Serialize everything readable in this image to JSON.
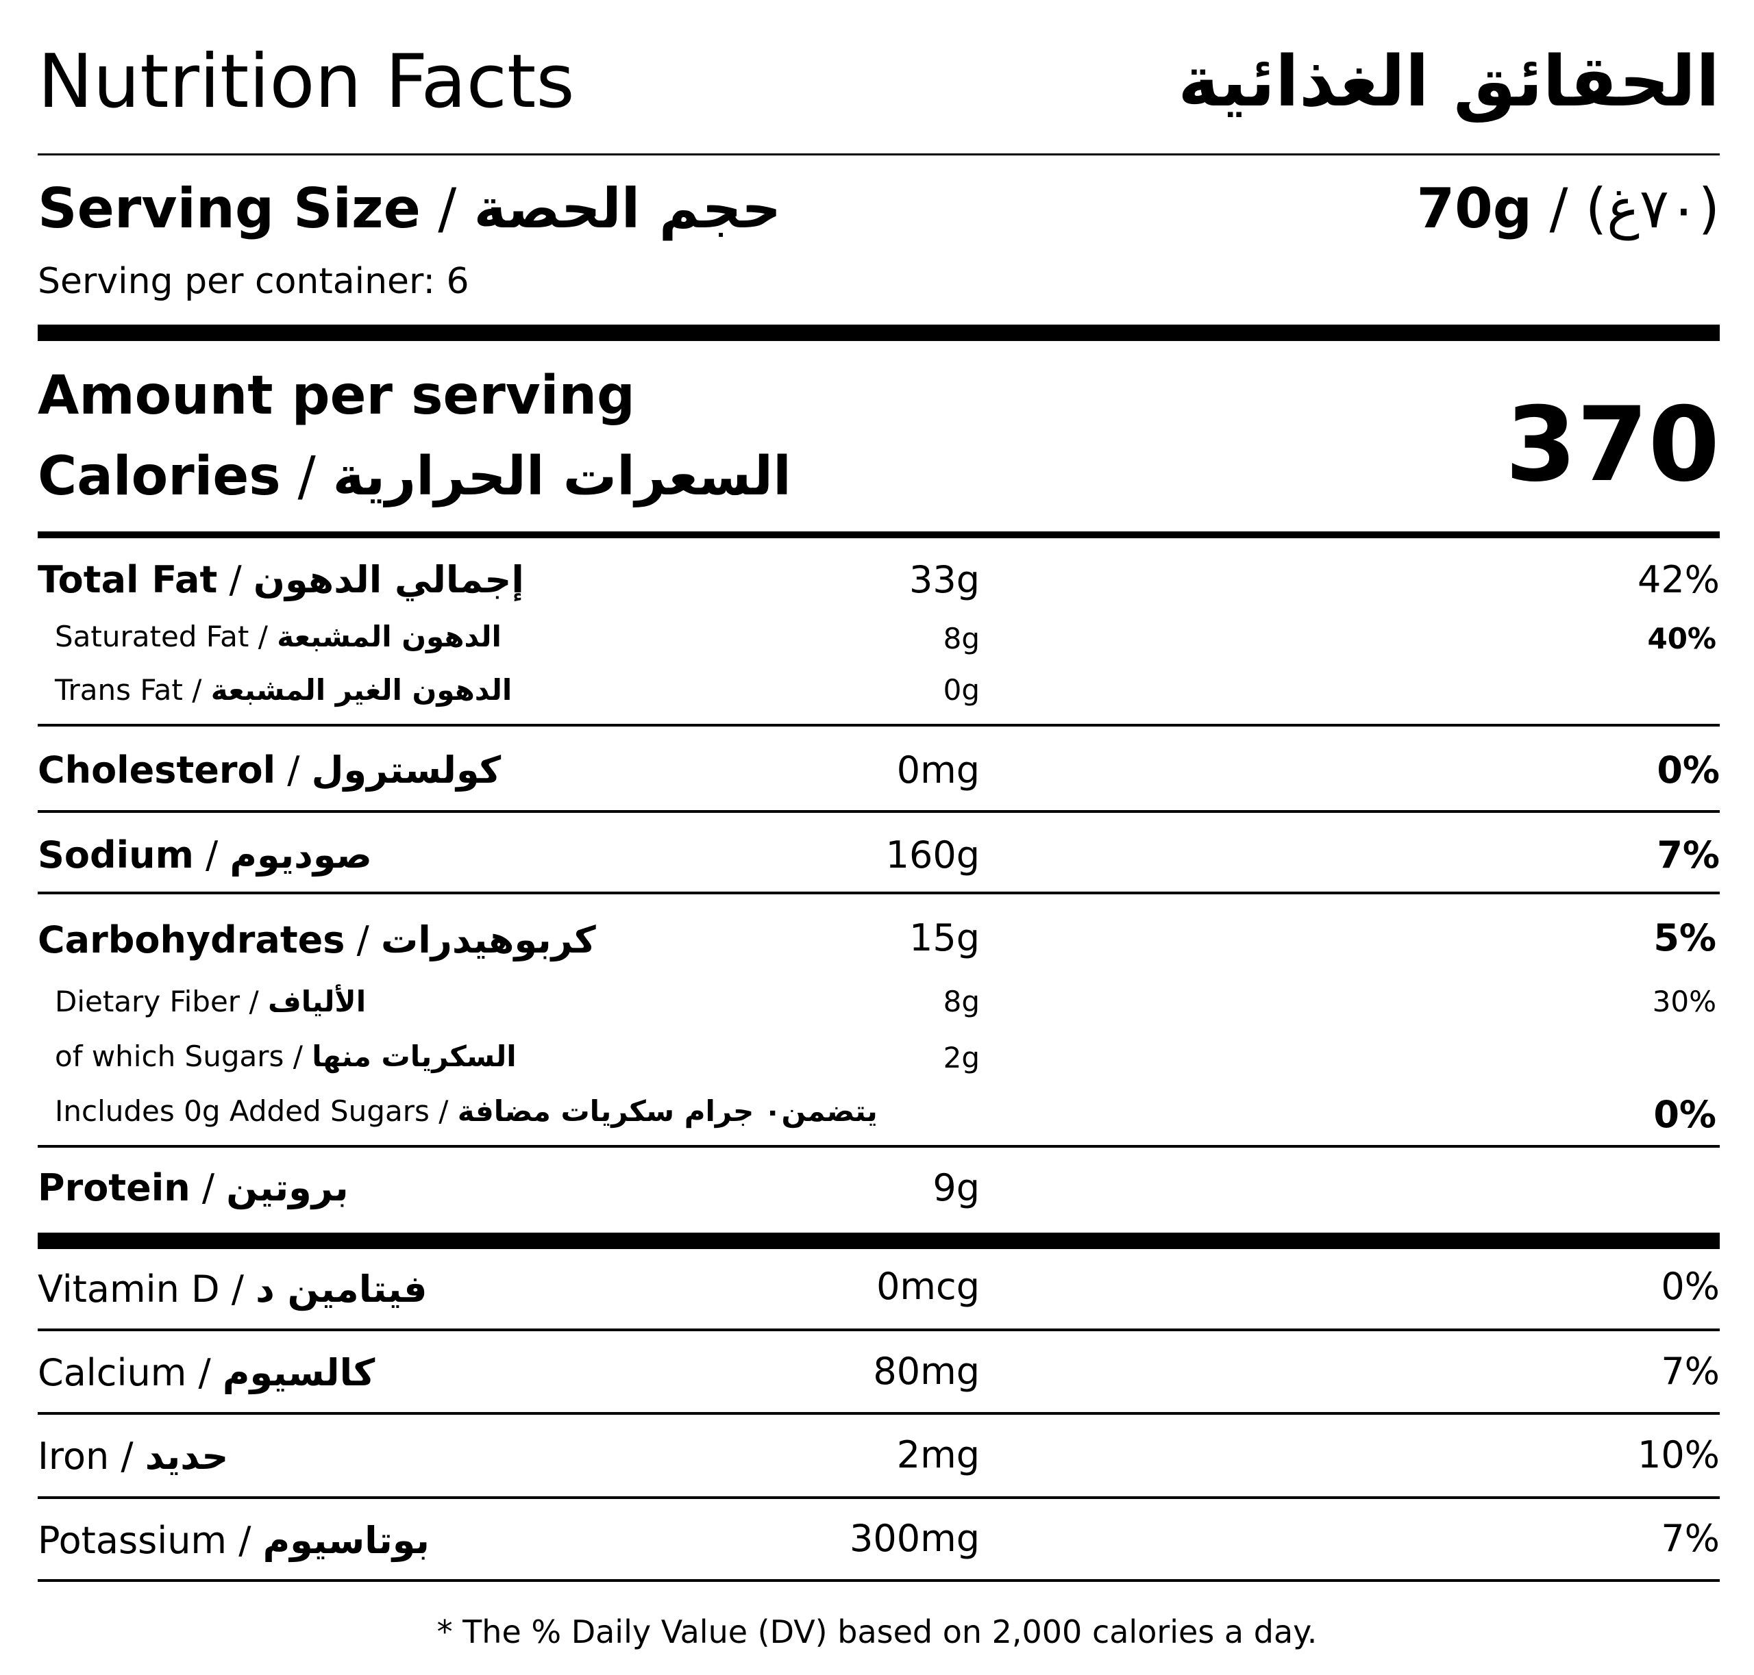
{
  "header": {
    "title_en": "Nutrition Facts",
    "title_ar": "الحقائق الغذائية"
  },
  "serving": {
    "size_label_en": "Serving Size",
    "size_label_ar": "حجم الحصة",
    "size_value_en": "70g",
    "size_value_ar": "(٧٠غ)",
    "per_container": "Serving per container: 6"
  },
  "calories": {
    "amount_label": "Amount per serving",
    "label_en": "Calories",
    "label_ar": "السعرات الحرارية",
    "value": "370"
  },
  "nutrients": [
    {
      "en": "Total Fat",
      "ar": "إجمالي الدهون",
      "amount": "33g",
      "dv": "42%"
    },
    {
      "en": "Saturated Fat",
      "ar": "الدهون المشبعة",
      "amount": "8g",
      "dv": "40%"
    },
    {
      "en": "Trans Fat",
      "ar": "الدهون الغير المشبعة",
      "amount": "0g",
      "dv": ""
    },
    {
      "en": "Cholesterol",
      "ar": "كولسترول",
      "amount": "0mg",
      "dv": "0%"
    },
    {
      "en": "Sodium",
      "ar": "صوديوم",
      "amount": "160g",
      "dv": "7%"
    },
    {
      "en": "Carbohydrates",
      "ar": "كربوهيدرات",
      "amount": "15g",
      "dv": "5%"
    },
    {
      "en": "Dietary Fiber",
      "ar": "الألياف",
      "amount": "8g",
      "dv": "30%"
    },
    {
      "en": "of which Sugars",
      "ar": "السكريات منها",
      "amount": "2g",
      "dv": ""
    },
    {
      "en": "Includes 0g Added Sugars",
      "ar": "يتضمن٠ جرام سكريات مضافة",
      "amount": "",
      "dv": "0%"
    },
    {
      "en": "Protein",
      "ar": "بروتين",
      "amount": "9g",
      "dv": ""
    }
  ],
  "vitamins": [
    {
      "en": "Vitamin D",
      "ar": "فيتامين د",
      "amount": "0mcg",
      "dv": "0%"
    },
    {
      "en": "Calcium",
      "ar": "كالسيوم",
      "amount": "80mg",
      "dv": "7%"
    },
    {
      "en": "Iron",
      "ar": "حديد",
      "amount": "2mg",
      "dv": "10%"
    },
    {
      "en": "Potassium",
      "ar": "بوتاسيوم",
      "amount": "300mg",
      "dv": "7%"
    }
  ],
  "separator": "/",
  "footnote": "* The % Daily Value (DV) based on 2,000 calories a day."
}
